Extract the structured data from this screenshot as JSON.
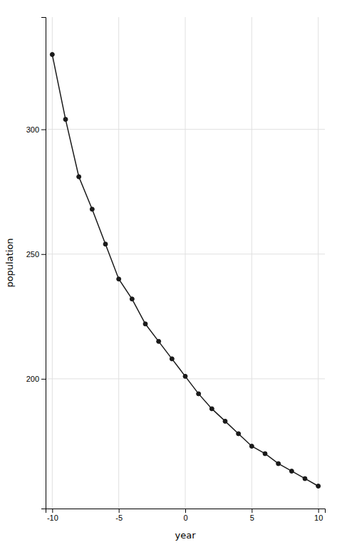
{
  "chart_data": {
    "type": "line",
    "x": [
      -10,
      -9,
      -8,
      -7,
      -6,
      -5,
      -4,
      -3,
      -2,
      -1,
      0,
      1,
      2,
      3,
      4,
      5,
      6,
      7,
      8,
      9,
      10
    ],
    "values": [
      330,
      304,
      281,
      268,
      254,
      240,
      232,
      222,
      215,
      208,
      201,
      194,
      188,
      183,
      178,
      173,
      170,
      166,
      163,
      160,
      157
    ],
    "xlabel": "year",
    "ylabel": "population",
    "xlim": [
      -10.5,
      10.5
    ],
    "ylim": [
      148,
      345
    ],
    "xticks": [
      -10,
      -5,
      0,
      5,
      10
    ],
    "yticks": [
      200,
      250,
      300
    ],
    "color": "#1a1a1a",
    "marker": "circle",
    "grid": true
  }
}
